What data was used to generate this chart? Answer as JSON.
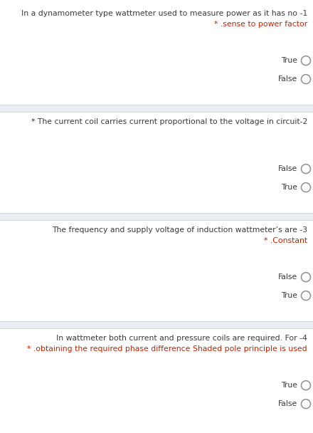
{
  "background_color": "#ffffff",
  "separator_bg_color": "#e8edf2",
  "separator_line_color": "#c8d0d8",
  "text_color": "#3a3a3a",
  "star_color": "#cc2200",
  "circle_edge_color": "#909090",
  "fig_width": 4.4,
  "fig_height": 6.08,
  "dpi": 100,
  "sections": [
    {
      "question_lines": [
        {
          "text": "In a dynamometer type wattmeter used to measure power as it has no -1",
          "align": "right",
          "color": "#3a3a3a"
        },
        {
          "text": "* .sense to power factor",
          "align": "right",
          "color": "#cc2200"
        }
      ],
      "options": [
        "True",
        "False"
      ]
    },
    {
      "question_lines": [
        {
          "text": "* The current coil carries current proportional to the voltage in circuit-2",
          "align": "right",
          "color": "#3a3a3a"
        }
      ],
      "options": [
        "False",
        "True"
      ]
    },
    {
      "question_lines": [
        {
          "text": "The frequency and supply voltage of induction wattmeter’s are -3",
          "align": "right",
          "color": "#3a3a3a"
        },
        {
          "text": "* .Constant",
          "align": "right",
          "color": "#cc2200"
        }
      ],
      "options": [
        "False",
        "True"
      ]
    },
    {
      "question_lines": [
        {
          "text": "In wattmeter both current and pressure coils are required. For -4",
          "align": "right",
          "color": "#3a3a3a"
        },
        {
          "text": "* .obtaining the required phase difference Shaded pole principle is used",
          "align": "right",
          "color": "#cc2200"
        }
      ],
      "options": [
        "True",
        "False"
      ]
    }
  ]
}
